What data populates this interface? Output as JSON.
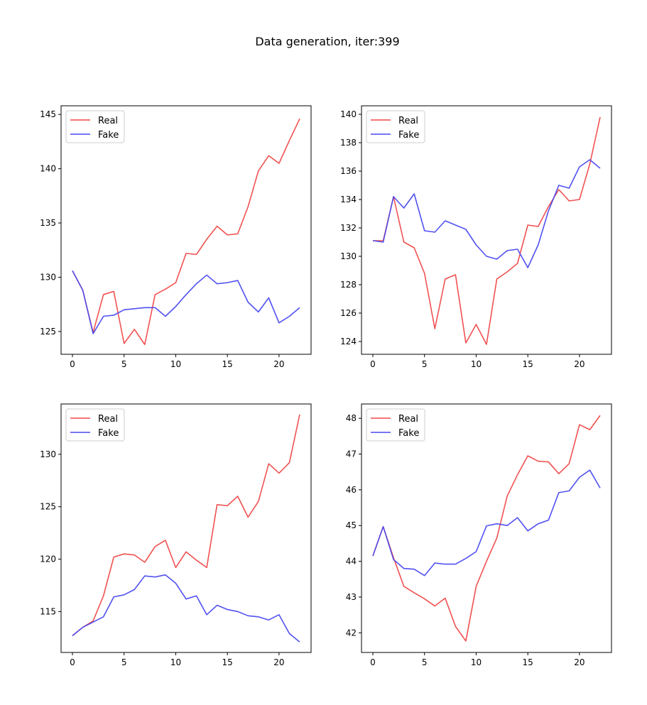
{
  "title": "Data generation, iter:399",
  "legend_labels": [
    "Real",
    "Fake"
  ],
  "colors": {
    "real": "#f04848",
    "fake": "#4848f0"
  },
  "chart_data": [
    {
      "type": "line",
      "legend": "upper-left",
      "x": [
        0,
        1,
        2,
        3,
        4,
        5,
        6,
        7,
        8,
        9,
        10,
        11,
        12,
        13,
        14,
        15,
        16,
        17,
        18,
        19,
        20,
        21,
        22
      ],
      "xticks": [
        0,
        5,
        10,
        15,
        20
      ],
      "xlim": [
        -1.1,
        23.1
      ],
      "yticks": [
        125,
        130,
        135,
        140,
        145
      ],
      "ylim": [
        122.9,
        145.8
      ],
      "series": [
        {
          "name": "Real",
          "color": "#f04848",
          "values": [
            130.6,
            128.8,
            124.9,
            128.4,
            128.7,
            123.9,
            125.2,
            123.8,
            128.4,
            128.9,
            129.5,
            132.2,
            132.1,
            133.5,
            134.7,
            133.9,
            134.0,
            136.5,
            139.8,
            141.2,
            140.5,
            142.6,
            144.6
          ]
        },
        {
          "name": "Fake",
          "color": "#4848f0",
          "values": [
            130.6,
            128.8,
            124.8,
            126.4,
            126.5,
            127.0,
            127.1,
            127.2,
            127.2,
            126.4,
            127.3,
            128.4,
            129.4,
            130.2,
            129.4,
            129.5,
            129.7,
            127.7,
            126.8,
            128.1,
            125.8,
            126.4,
            127.2
          ]
        }
      ]
    },
    {
      "type": "line",
      "legend": "upper-left",
      "x": [
        0,
        1,
        2,
        3,
        4,
        5,
        6,
        7,
        8,
        9,
        10,
        11,
        12,
        13,
        14,
        15,
        16,
        17,
        18,
        19,
        20,
        21,
        22
      ],
      "xticks": [
        0,
        5,
        10,
        15,
        20
      ],
      "xlim": [
        -1.1,
        23.1
      ],
      "yticks": [
        124,
        126,
        128,
        130,
        132,
        134,
        136,
        138,
        140
      ],
      "ylim": [
        123.1,
        140.6
      ],
      "series": [
        {
          "name": "Real",
          "color": "#f04848",
          "values": [
            131.1,
            131.1,
            134.2,
            131.0,
            130.6,
            128.8,
            124.9,
            128.4,
            128.7,
            123.9,
            125.2,
            123.8,
            128.4,
            128.9,
            129.5,
            132.2,
            132.1,
            133.5,
            134.7,
            133.9,
            134.0,
            136.5,
            139.8
          ]
        },
        {
          "name": "Fake",
          "color": "#4848f0",
          "values": [
            131.1,
            131.0,
            134.2,
            133.4,
            134.4,
            131.8,
            131.7,
            132.5,
            132.2,
            131.9,
            130.8,
            130.0,
            129.8,
            130.4,
            130.5,
            129.2,
            130.8,
            133.2,
            135.0,
            134.8,
            136.3,
            136.8,
            136.2
          ]
        }
      ]
    },
    {
      "type": "line",
      "legend": "upper-left",
      "x": [
        0,
        1,
        2,
        3,
        4,
        5,
        6,
        7,
        8,
        9,
        10,
        11,
        12,
        13,
        14,
        15,
        16,
        17,
        18,
        19,
        20,
        21,
        22
      ],
      "xticks": [
        0,
        5,
        10,
        15,
        20
      ],
      "xlim": [
        -1.1,
        23.1
      ],
      "yticks": [
        115,
        120,
        125,
        130
      ],
      "ylim": [
        111.1,
        134.8
      ],
      "series": [
        {
          "name": "Real",
          "color": "#f04848",
          "values": [
            112.7,
            113.5,
            114.1,
            116.5,
            120.2,
            120.5,
            120.4,
            119.7,
            121.2,
            121.8,
            119.2,
            120.7,
            119.9,
            119.2,
            125.2,
            125.1,
            126.0,
            124.0,
            125.5,
            129.1,
            128.2,
            129.2,
            133.8
          ]
        },
        {
          "name": "Fake",
          "color": "#4848f0",
          "values": [
            112.7,
            113.5,
            114.0,
            114.5,
            116.4,
            116.6,
            117.1,
            118.4,
            118.3,
            118.5,
            117.7,
            116.2,
            116.5,
            114.7,
            115.6,
            115.2,
            115.0,
            114.6,
            114.5,
            114.2,
            114.7,
            112.9,
            112.1
          ]
        }
      ]
    },
    {
      "type": "line",
      "legend": "upper-left",
      "x": [
        0,
        1,
        2,
        3,
        4,
        5,
        6,
        7,
        8,
        9,
        10,
        11,
        12,
        13,
        14,
        15,
        16,
        17,
        18,
        19,
        20,
        21,
        22
      ],
      "xticks": [
        0,
        5,
        10,
        15,
        20
      ],
      "xlim": [
        -1.1,
        23.1
      ],
      "yticks": [
        42,
        43,
        44,
        45,
        46,
        47,
        48
      ],
      "ylim": [
        41.45,
        48.4
      ],
      "series": [
        {
          "name": "Real",
          "color": "#f04848",
          "values": [
            44.15,
            44.97,
            44.1,
            43.3,
            43.12,
            42.95,
            42.75,
            42.97,
            42.18,
            41.77,
            43.3,
            44.0,
            44.65,
            45.82,
            46.42,
            46.95,
            46.8,
            46.78,
            46.45,
            46.73,
            47.82,
            47.68,
            48.08
          ]
        },
        {
          "name": "Fake",
          "color": "#4848f0",
          "values": [
            44.15,
            44.97,
            44.05,
            43.8,
            43.78,
            43.6,
            43.95,
            43.92,
            43.92,
            44.08,
            44.27,
            44.99,
            45.05,
            45.0,
            45.22,
            44.85,
            45.05,
            45.15,
            45.92,
            45.97,
            46.35,
            46.55,
            46.05
          ]
        }
      ]
    }
  ]
}
